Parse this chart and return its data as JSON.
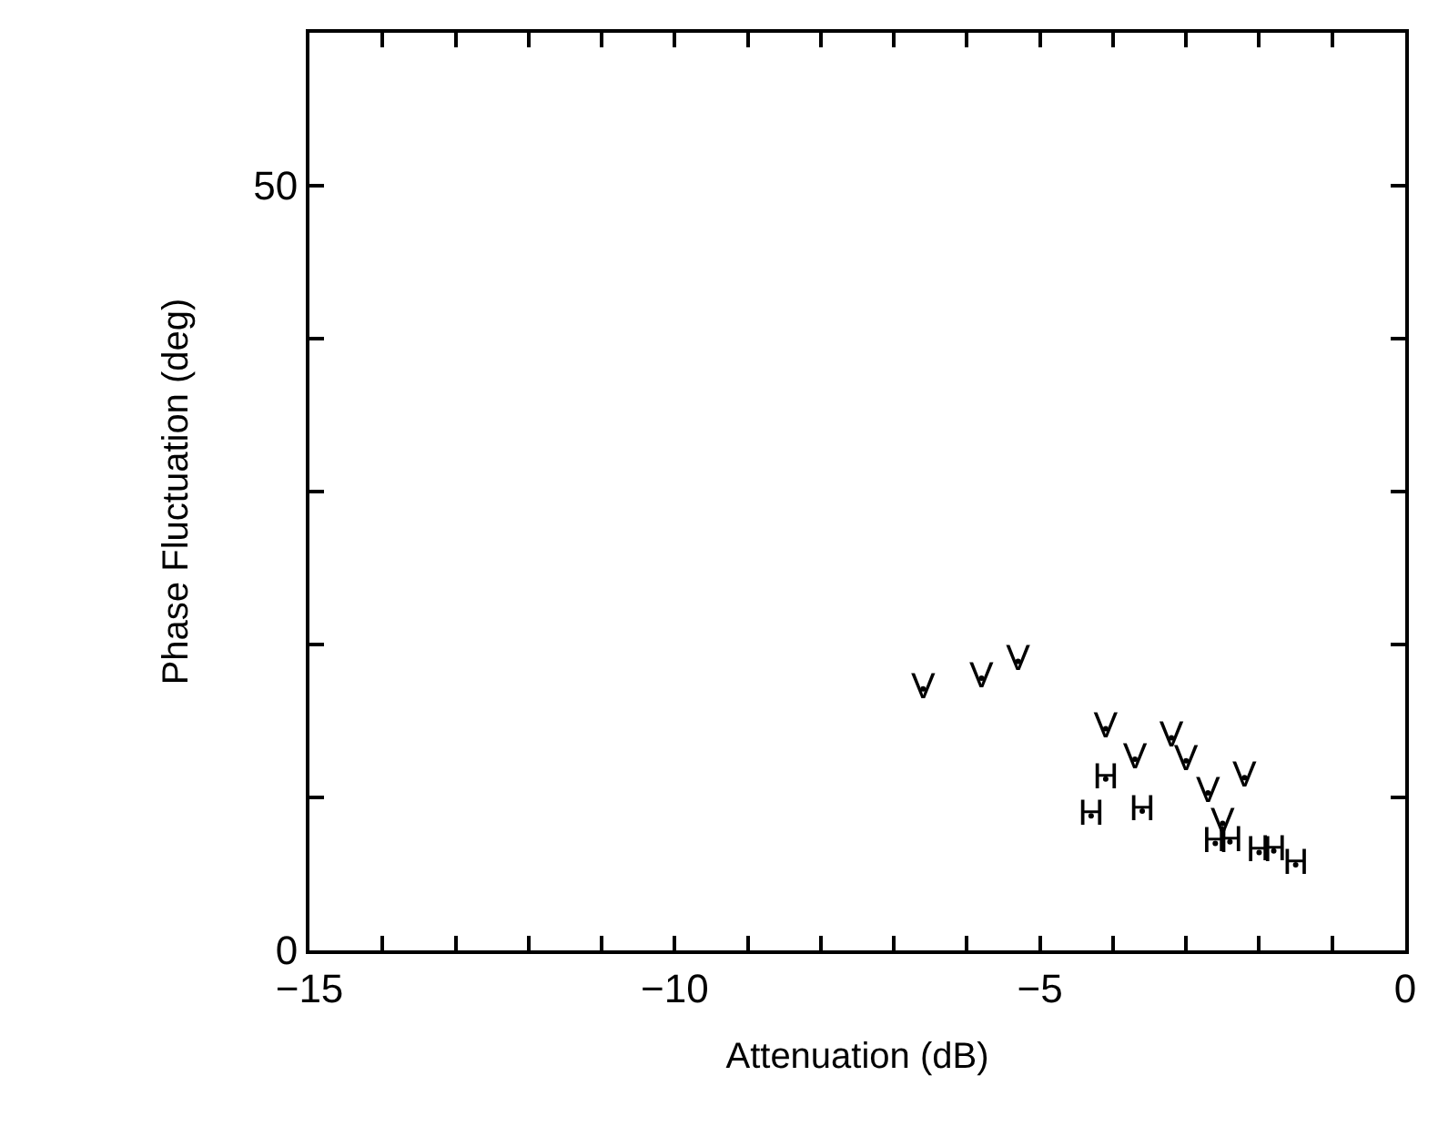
{
  "chart_data": {
    "type": "scatter",
    "xlabel": "Attenuation (dB)",
    "ylabel": "Phase Fluctuation (deg)",
    "marker": "circle",
    "series": [
      {
        "name": "V",
        "color": "#000000",
        "x": [
          -6.6,
          -5.8,
          -5.3,
          -4.1,
          -3.7,
          -3.2,
          -3.0,
          -2.7,
          -2.2,
          -2.5
        ],
        "values": [
          17.1,
          17.8,
          18.9,
          14.5,
          12.5,
          13.9,
          12.4,
          10.3,
          11.3,
          8.3
        ]
      },
      {
        "name": "H",
        "color": "#000000",
        "x": [
          -4.1,
          -4.3,
          -3.6,
          -2.6,
          -2.4,
          -2.0,
          -1.8,
          -1.5
        ],
        "values": [
          11.2,
          8.8,
          9.1,
          7.0,
          7.1,
          6.4,
          6.5,
          5.6
        ]
      }
    ],
    "xlim": [
      -15,
      0
    ],
    "ylim": [
      0,
      60
    ],
    "xticks": [
      -15,
      {
        "value": -14,
        "label": null
      },
      {
        "value": -13,
        "label": null
      },
      {
        "value": -12,
        "label": null
      },
      {
        "value": -11,
        "label": null
      },
      -10,
      {
        "value": -9,
        "label": null
      },
      {
        "value": -8,
        "label": null
      },
      {
        "value": -7,
        "label": null
      },
      {
        "value": -6,
        "label": null
      },
      -5,
      {
        "value": -4,
        "label": null
      },
      {
        "value": -3,
        "label": null
      },
      {
        "value": -2,
        "label": null
      },
      {
        "value": -1,
        "label": null
      },
      0
    ],
    "yticks": [
      0,
      {
        "value": 10,
        "label": null
      },
      {
        "value": 20,
        "label": null
      },
      {
        "value": 30,
        "label": null
      },
      {
        "value": 40,
        "label": null
      },
      50
    ],
    "legend": false
  }
}
